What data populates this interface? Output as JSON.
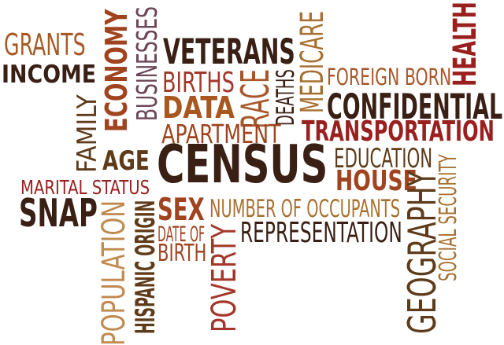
{
  "words": [
    {
      "text": "GRANTS",
      "color": "#a85a26",
      "weight": "normal",
      "orientation": "horizontal"
    },
    {
      "text": "INCOME",
      "color": "#3a1f14",
      "weight": "bold",
      "orientation": "horizontal"
    },
    {
      "text": "FAMILY",
      "color": "#5e3b1a",
      "weight": "normal",
      "orientation": "vertical-up"
    },
    {
      "text": "ECONOMY",
      "color": "#a04420",
      "weight": "bold",
      "orientation": "vertical-up"
    },
    {
      "text": "BUSINESSES",
      "color": "#6b4656",
      "weight": "normal",
      "orientation": "vertical-up"
    },
    {
      "text": "VETERANS",
      "color": "#3a1f14",
      "weight": "bold",
      "orientation": "horizontal"
    },
    {
      "text": "BIRTHS",
      "color": "#a4372b",
      "weight": "normal",
      "orientation": "horizontal"
    },
    {
      "text": "DATA",
      "color": "#a8571f",
      "weight": "bold",
      "orientation": "horizontal"
    },
    {
      "text": "RACE",
      "color": "#a8572a",
      "weight": "normal",
      "orientation": "vertical-up"
    },
    {
      "text": "DEATHS",
      "color": "#3a1f14",
      "weight": "normal",
      "orientation": "vertical-up"
    },
    {
      "text": "MEDICARE",
      "color": "#a87030",
      "weight": "normal",
      "orientation": "vertical-up"
    },
    {
      "text": "FOREIGN BORN",
      "color": "#a8572a",
      "weight": "normal",
      "orientation": "horizontal"
    },
    {
      "text": "HEALTH",
      "color": "#9a2020",
      "weight": "bold",
      "orientation": "vertical-up"
    },
    {
      "text": "APARTMENT",
      "color": "#a04420",
      "weight": "normal",
      "orientation": "horizontal"
    },
    {
      "text": "CONFIDENTIAL",
      "color": "#3a1f14",
      "weight": "bold",
      "orientation": "horizontal"
    },
    {
      "text": "TRANSPORTATION",
      "color": "#9a2020",
      "weight": "bold",
      "orientation": "horizontal"
    },
    {
      "text": "AGE",
      "color": "#5e3b1a",
      "weight": "bold",
      "orientation": "horizontal"
    },
    {
      "text": "CENSUS",
      "color": "#3a1f14",
      "weight": "bold",
      "orientation": "horizontal"
    },
    {
      "text": "EDUCATION",
      "color": "#5e3b1a",
      "weight": "normal",
      "orientation": "horizontal"
    },
    {
      "text": "HOUSE",
      "color": "#a04420",
      "weight": "bold",
      "orientation": "horizontal"
    },
    {
      "text": "MARITAL STATUS",
      "color": "#9a2020",
      "weight": "normal",
      "orientation": "horizontal"
    },
    {
      "text": "SNAP",
      "color": "#3a1f14",
      "weight": "bold",
      "orientation": "horizontal"
    },
    {
      "text": "POPULATION",
      "color": "#c08a50",
      "weight": "normal",
      "orientation": "vertical-up"
    },
    {
      "text": "HISPANIC ORIGIN",
      "color": "#5e3b1a",
      "weight": "bold",
      "orientation": "vertical-up"
    },
    {
      "text": "SEX",
      "color": "#a04420",
      "weight": "bold",
      "orientation": "horizontal"
    },
    {
      "text": "DATE OF",
      "color": "#a04420",
      "weight": "normal",
      "orientation": "horizontal"
    },
    {
      "text": "BIRTH",
      "color": "#a04420",
      "weight": "normal",
      "orientation": "horizontal"
    },
    {
      "text": "POVERTY",
      "color": "#a4372b",
      "weight": "normal",
      "orientation": "vertical-up"
    },
    {
      "text": "NUMBER OF OCCUPANTS",
      "color": "#a87030",
      "weight": "normal",
      "orientation": "horizontal"
    },
    {
      "text": "REPRESENTATION",
      "color": "#3a1f14",
      "weight": "normal",
      "orientation": "horizontal"
    },
    {
      "text": "GEOGRAPHY",
      "color": "#5e3b1a",
      "weight": "normal",
      "orientation": "vertical-up"
    },
    {
      "text": "SOCIAL SECURITY",
      "color": "#a87030",
      "weight": "normal",
      "orientation": "vertical-up"
    }
  ]
}
